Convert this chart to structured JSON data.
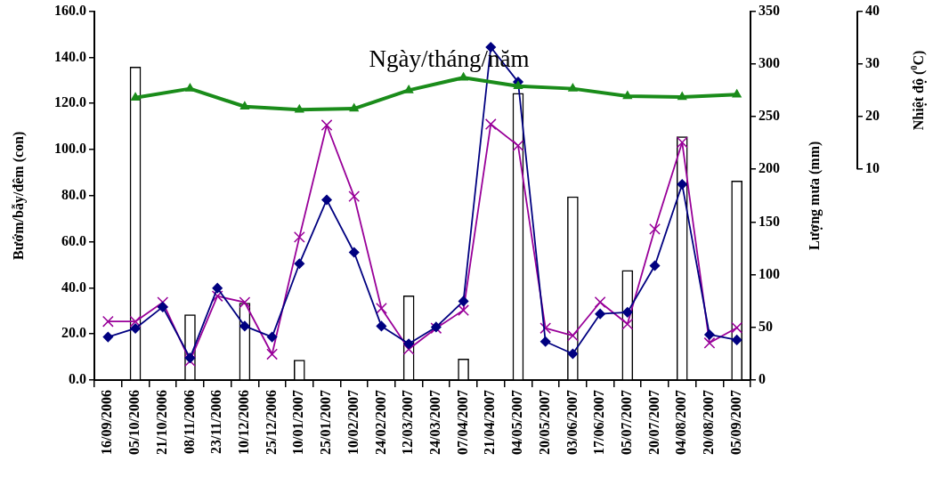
{
  "chart_data": {
    "type": "line",
    "xlabel": "Ngày/tháng/năm",
    "ylabel": "Bướm/bẫy/đêm (con)",
    "y2label": "Lượng mưa (mm)",
    "y3label": "Nhiệt độ ($^{0}$C)",
    "categories": [
      "16/09/2006",
      "05/10/2006",
      "21/10/2006",
      "08/11/2006",
      "23/11/2006",
      "10/12/2006",
      "25/12/2006",
      "10/01/2007",
      "25/01/2007",
      "10/02/2007",
      "24/02/2007",
      "12/03/2007",
      "24/03/2007",
      "07/04/2007",
      "21/04/2007",
      "04/05/2007",
      "20/05/2007",
      "03/06/2007",
      "17/06/2007",
      "05/07/2007",
      "20/07/2007",
      "04/08/2007",
      "20/08/2007",
      "05/09/2007"
    ],
    "series": [
      {
        "type": "bar",
        "axis": "y2",
        "color": "#ffffff",
        "values": [
          null,
          297,
          null,
          62,
          null,
          73,
          null,
          19,
          null,
          null,
          null,
          80,
          null,
          20,
          null,
          272,
          null,
          174,
          null,
          104,
          null,
          231,
          null,
          189
        ]
      },
      {
        "axis": "y3",
        "color": "#1a8c1a",
        "marker": "triangle",
        "values": [
          null,
          23.6,
          null,
          25.3,
          null,
          21.9,
          null,
          21.3,
          null,
          21.5,
          null,
          25.0,
          null,
          27.4,
          null,
          25.8,
          null,
          25.3,
          null,
          23.9,
          null,
          23.7,
          null,
          24.2
        ]
      },
      {
        "axis": "y",
        "color": "#000080",
        "marker": "diamond",
        "values": [
          18.7,
          22.4,
          31.7,
          9.6,
          39.9,
          23.4,
          18.7,
          50.5,
          78.2,
          55.4,
          23.4,
          15.7,
          23.0,
          34.2,
          144.4,
          129.3,
          16.7,
          11.4,
          28.7,
          29.4,
          49.6,
          84.9,
          19.7,
          17.4
        ]
      },
      {
        "axis": "y",
        "color": "#990099",
        "marker": "cross",
        "values": [
          25.4,
          25.4,
          33.7,
          8.3,
          36.4,
          33.7,
          11.2,
          62.0,
          110.6,
          79.7,
          31.1,
          13.4,
          22.5,
          30.3,
          111.0,
          101.7,
          22.5,
          19.3,
          33.8,
          24.3,
          65.5,
          103.1,
          16.1,
          22.7
        ]
      }
    ],
    "ylim": [
      0,
      160
    ],
    "yticks": [
      {
        "value": 0,
        "label": "0.0"
      },
      {
        "value": 20,
        "label": "20.0"
      },
      {
        "value": 40,
        "label": "40.0"
      },
      {
        "value": 60,
        "label": "60.0"
      },
      {
        "value": 80,
        "label": "80.0"
      },
      {
        "value": 100,
        "label": "100.0"
      },
      {
        "value": 120,
        "label": "120.0"
      },
      {
        "value": 140,
        "label": "140.0"
      },
      {
        "value": 160,
        "label": "160.0"
      }
    ],
    "y2lim": [
      0,
      350
    ],
    "y2ticks": [
      0,
      50,
      100,
      150,
      200,
      250,
      300,
      350
    ],
    "y3lim": [
      -30,
      40
    ],
    "y3ticks": [
      10,
      20,
      30,
      40
    ],
    "grid": false,
    "legend": false
  }
}
